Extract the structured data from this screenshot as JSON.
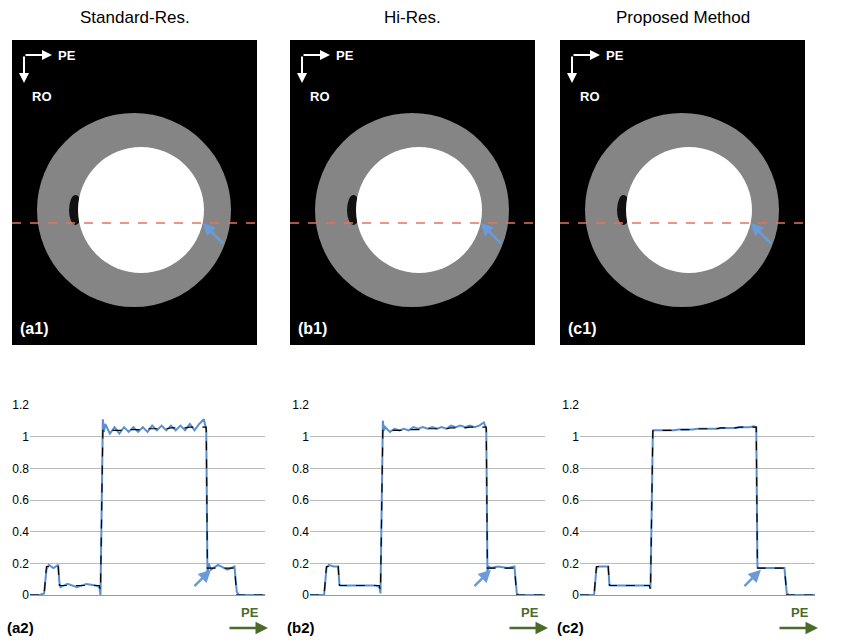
{
  "chart_data": [
    {
      "type": "line",
      "title": "Standard-Res.",
      "image_labels": [
        "PE",
        "RO"
      ],
      "image_panel_label": "(a1)",
      "panel_label": "(a2)",
      "x_label": "PE",
      "x": [
        0,
        4,
        6,
        7,
        8,
        10,
        12,
        12.5,
        13,
        16,
        20,
        24,
        28,
        29.5,
        30,
        31,
        31.5,
        32,
        34,
        36,
        38,
        40,
        42,
        44,
        46,
        48,
        50,
        52,
        54,
        56,
        58,
        60,
        62,
        64,
        66,
        68,
        70,
        72,
        74,
        75,
        75.5,
        76,
        77,
        80,
        84,
        87,
        88,
        89,
        92,
        96,
        100
      ],
      "xlim": [
        0,
        100
      ],
      "ylim": [
        0,
        1.2
      ],
      "yticks": [
        0,
        0.2,
        0.4,
        0.6,
        0.8,
        1,
        1.2
      ],
      "grid": true,
      "tick_labels": "y",
      "series": [
        {
          "color": "#5b8fd0",
          "line_style": "solid",
          "values": [
            0,
            0,
            0.01,
            0.16,
            0.19,
            0.17,
            0.19,
            0.08,
            0.05,
            0.07,
            0.05,
            0.07,
            0.06,
            0.05,
            0,
            1.11,
            1.03,
            1.08,
            1.02,
            1.06,
            1.02,
            1.06,
            1.03,
            1.06,
            1.03,
            1.06,
            1.03,
            1.07,
            1.04,
            1.07,
            1.04,
            1.07,
            1.04,
            1.07,
            1.04,
            1.08,
            1.04,
            1.08,
            1.11,
            1.04,
            0.13,
            0.2,
            0.16,
            0.19,
            0.16,
            0.18,
            0.02,
            0,
            0,
            0,
            0
          ]
        },
        {
          "color": "#000000",
          "line_style": "dashed",
          "values": [
            0,
            0,
            0,
            0.18,
            0.18,
            0.18,
            0.18,
            0.06,
            0.06,
            0.06,
            0.06,
            0.06,
            0.06,
            0.06,
            0.03,
            1.04,
            1.04,
            1.04,
            1.04,
            1.04,
            1.04,
            1.04,
            1.045,
            1.045,
            1.045,
            1.045,
            1.05,
            1.05,
            1.05,
            1.05,
            1.05,
            1.055,
            1.055,
            1.055,
            1.055,
            1.06,
            1.06,
            1.06,
            1.06,
            1.06,
            0.17,
            0.17,
            0.17,
            0.17,
            0.17,
            0.17,
            0,
            0,
            0,
            0,
            0
          ]
        }
      ]
    },
    {
      "type": "line",
      "title": "Hi-Res.",
      "image_labels": [
        "PE",
        "RO"
      ],
      "image_panel_label": "(b1)",
      "panel_label": "(b2)",
      "x_label": "PE",
      "x": [
        0,
        4,
        6,
        7,
        8,
        10,
        12,
        12.5,
        13,
        16,
        20,
        24,
        28,
        29.5,
        30,
        31,
        31.5,
        32,
        34,
        36,
        38,
        40,
        42,
        44,
        46,
        48,
        50,
        52,
        54,
        56,
        58,
        60,
        62,
        64,
        66,
        68,
        70,
        72,
        74,
        75,
        75.5,
        76,
        77,
        80,
        84,
        87,
        88,
        89,
        92,
        96,
        100
      ],
      "xlim": [
        0,
        100
      ],
      "ylim": [
        0,
        1.2
      ],
      "yticks": [
        0,
        0.2,
        0.4,
        0.6,
        0.8,
        1,
        1.2
      ],
      "grid": true,
      "tick_labels": "y",
      "series": [
        {
          "color": "#5b8fd0",
          "line_style": "solid",
          "values": [
            0,
            0,
            0,
            0.17,
            0.19,
            0.18,
            0.18,
            0.07,
            0.06,
            0.06,
            0.06,
            0.06,
            0.06,
            0.05,
            0.01,
            1.1,
            1.04,
            1.06,
            1.03,
            1.05,
            1.04,
            1.05,
            1.04,
            1.06,
            1.05,
            1.06,
            1.05,
            1.06,
            1.05,
            1.06,
            1.05,
            1.07,
            1.06,
            1.07,
            1.06,
            1.07,
            1.06,
            1.07,
            1.09,
            1.05,
            0.15,
            0.18,
            0.17,
            0.18,
            0.17,
            0.18,
            0.01,
            0,
            0,
            0,
            0
          ]
        },
        {
          "color": "#000000",
          "line_style": "dashed",
          "values": [
            0,
            0,
            0,
            0.18,
            0.18,
            0.18,
            0.18,
            0.06,
            0.06,
            0.06,
            0.06,
            0.06,
            0.06,
            0.06,
            0.03,
            1.04,
            1.04,
            1.04,
            1.04,
            1.04,
            1.04,
            1.04,
            1.045,
            1.045,
            1.045,
            1.045,
            1.05,
            1.05,
            1.05,
            1.05,
            1.05,
            1.055,
            1.055,
            1.055,
            1.055,
            1.06,
            1.06,
            1.06,
            1.06,
            1.06,
            0.17,
            0.17,
            0.17,
            0.17,
            0.17,
            0.17,
            0,
            0,
            0,
            0,
            0
          ]
        }
      ]
    },
    {
      "type": "line",
      "title": "Proposed Method",
      "image_labels": [
        "PE",
        "RO"
      ],
      "image_panel_label": "(c1)",
      "panel_label": "(c2)",
      "x_label": "PE",
      "x": [
        0,
        4,
        6,
        7,
        8,
        10,
        12,
        12.5,
        13,
        16,
        20,
        24,
        28,
        29.5,
        30,
        31,
        31.5,
        32,
        34,
        36,
        38,
        40,
        42,
        44,
        46,
        48,
        50,
        52,
        54,
        56,
        58,
        60,
        62,
        64,
        66,
        68,
        70,
        72,
        74,
        75,
        75.5,
        76,
        77,
        80,
        84,
        87,
        88,
        89,
        92,
        96,
        100
      ],
      "xlim": [
        0,
        100
      ],
      "ylim": [
        0,
        1.2
      ],
      "yticks": [
        0,
        0.2,
        0.4,
        0.6,
        0.8,
        1,
        1.2
      ],
      "grid": true,
      "tick_labels": "y",
      "series": [
        {
          "color": "#5b8fd0",
          "line_style": "solid",
          "values": [
            0,
            0,
            0,
            0.17,
            0.18,
            0.18,
            0.18,
            0.07,
            0.06,
            0.06,
            0.06,
            0.06,
            0.06,
            0.06,
            0.04,
            1.03,
            1.04,
            1.04,
            1.04,
            1.04,
            1.04,
            1.04,
            1.045,
            1.045,
            1.045,
            1.045,
            1.05,
            1.05,
            1.05,
            1.05,
            1.05,
            1.055,
            1.055,
            1.055,
            1.055,
            1.06,
            1.06,
            1.06,
            1.065,
            1.06,
            0.18,
            0.17,
            0.17,
            0.17,
            0.17,
            0.17,
            0.01,
            0,
            0,
            0,
            0
          ]
        },
        {
          "color": "#000000",
          "line_style": "dashed",
          "values": [
            0,
            0,
            0,
            0.18,
            0.18,
            0.18,
            0.18,
            0.06,
            0.06,
            0.06,
            0.06,
            0.06,
            0.06,
            0.06,
            0.03,
            1.04,
            1.04,
            1.04,
            1.04,
            1.04,
            1.04,
            1.04,
            1.045,
            1.045,
            1.045,
            1.045,
            1.05,
            1.05,
            1.05,
            1.05,
            1.05,
            1.055,
            1.055,
            1.055,
            1.055,
            1.06,
            1.06,
            1.06,
            1.06,
            1.06,
            0.17,
            0.17,
            0.17,
            0.17,
            0.17,
            0.17,
            0,
            0,
            0,
            0,
            0
          ]
        }
      ]
    }
  ]
}
